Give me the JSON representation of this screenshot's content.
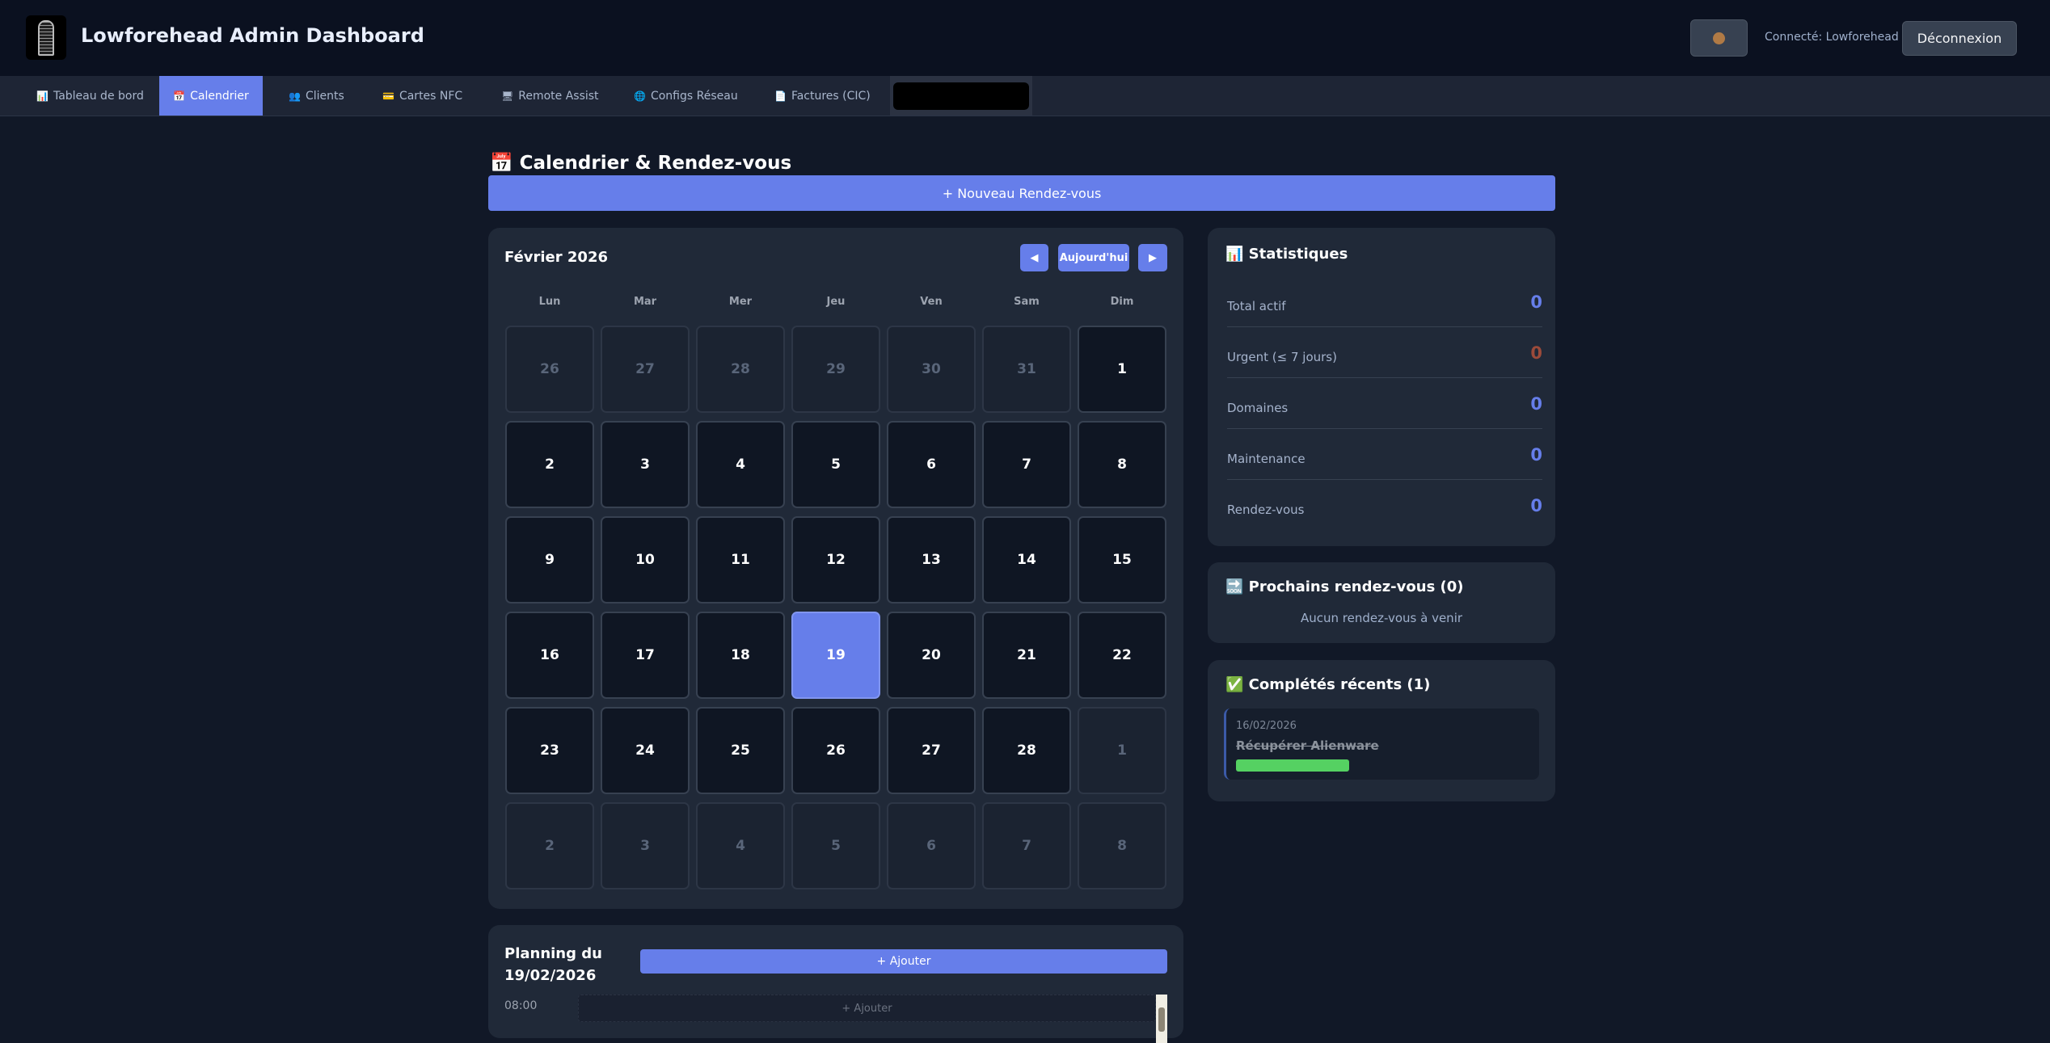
{
  "header": {
    "title": "Lowforehead Admin Dashboard",
    "user": "Connecté: Lowforehead",
    "logout": "Déconnexion",
    "theme_icon": "cookie-icon"
  },
  "nav": [
    {
      "label": "Tableau de bord",
      "icon": "📊"
    },
    {
      "label": "Calendrier",
      "icon": "📅",
      "active": true
    },
    {
      "label": "Clients",
      "icon": "👥"
    },
    {
      "label": "Cartes NFC",
      "icon": "💳"
    },
    {
      "label": "Remote Assist",
      "icon": "🖥"
    },
    {
      "label": "Configs Réseau",
      "icon": "🌐"
    },
    {
      "label": "Factures (CIC)",
      "icon": "📄"
    }
  ],
  "page": {
    "title": "Calendrier & Rendez-vous",
    "title_icon": "📅",
    "new_button": "+ Nouveau Rendez-vous"
  },
  "calendar": {
    "month": "Février 2026",
    "prev": "◀",
    "today": "Aujourd'hui",
    "next": "▶",
    "weekdays": [
      "Lun",
      "Mar",
      "Mer",
      "Jeu",
      "Ven",
      "Sam",
      "Dim"
    ],
    "days": [
      {
        "d": "26",
        "t": "other"
      },
      {
        "d": "27",
        "t": "other"
      },
      {
        "d": "28",
        "t": "other"
      },
      {
        "d": "29",
        "t": "other"
      },
      {
        "d": "30",
        "t": "other"
      },
      {
        "d": "31",
        "t": "other"
      },
      {
        "d": "1",
        "t": "cur"
      },
      {
        "d": "2",
        "t": "cur"
      },
      {
        "d": "3",
        "t": "cur"
      },
      {
        "d": "4",
        "t": "cur"
      },
      {
        "d": "5",
        "t": "cur"
      },
      {
        "d": "6",
        "t": "cur"
      },
      {
        "d": "7",
        "t": "cur"
      },
      {
        "d": "8",
        "t": "cur"
      },
      {
        "d": "9",
        "t": "cur"
      },
      {
        "d": "10",
        "t": "cur"
      },
      {
        "d": "11",
        "t": "cur"
      },
      {
        "d": "12",
        "t": "cur"
      },
      {
        "d": "13",
        "t": "cur"
      },
      {
        "d": "14",
        "t": "cur"
      },
      {
        "d": "15",
        "t": "cur"
      },
      {
        "d": "16",
        "t": "cur"
      },
      {
        "d": "17",
        "t": "cur"
      },
      {
        "d": "18",
        "t": "cur"
      },
      {
        "d": "19",
        "t": "today"
      },
      {
        "d": "20",
        "t": "cur"
      },
      {
        "d": "21",
        "t": "cur"
      },
      {
        "d": "22",
        "t": "cur"
      },
      {
        "d": "23",
        "t": "cur"
      },
      {
        "d": "24",
        "t": "cur"
      },
      {
        "d": "25",
        "t": "cur"
      },
      {
        "d": "26",
        "t": "cur"
      },
      {
        "d": "27",
        "t": "cur"
      },
      {
        "d": "28",
        "t": "cur"
      },
      {
        "d": "1",
        "t": "other"
      },
      {
        "d": "2",
        "t": "other"
      },
      {
        "d": "3",
        "t": "other"
      },
      {
        "d": "4",
        "t": "other"
      },
      {
        "d": "5",
        "t": "other"
      },
      {
        "d": "6",
        "t": "other"
      },
      {
        "d": "7",
        "t": "other"
      },
      {
        "d": "8",
        "t": "other"
      }
    ]
  },
  "stats": {
    "title": "📊 Statistiques",
    "rows": [
      {
        "label": "Total actif",
        "value": "0",
        "color": "#667eea"
      },
      {
        "label": "Urgent (≤ 7 jours)",
        "value": "0",
        "color": "#9b4a3a"
      },
      {
        "label": "Domaines",
        "value": "0",
        "color": "#667eea"
      },
      {
        "label": "Maintenance",
        "value": "0",
        "color": "#667eea"
      },
      {
        "label": "Rendez-vous",
        "value": "0",
        "color": "#667eea"
      }
    ]
  },
  "upcoming": {
    "title": "🔜 Prochains rendez-vous (0)",
    "empty": "Aucun rendez-vous à venir"
  },
  "completed": {
    "title": "✅ Complétés récents (1)",
    "items": [
      {
        "date": "16/02/2026",
        "title": "Récupérer Alienware",
        "tag_color": "#55d162"
      }
    ]
  },
  "planning": {
    "title_line1": "Planning du",
    "title_line2": "19/02/2026",
    "add": "+ Ajouter",
    "slots": [
      {
        "time": "08:00",
        "add": "+ Ajouter"
      }
    ]
  }
}
